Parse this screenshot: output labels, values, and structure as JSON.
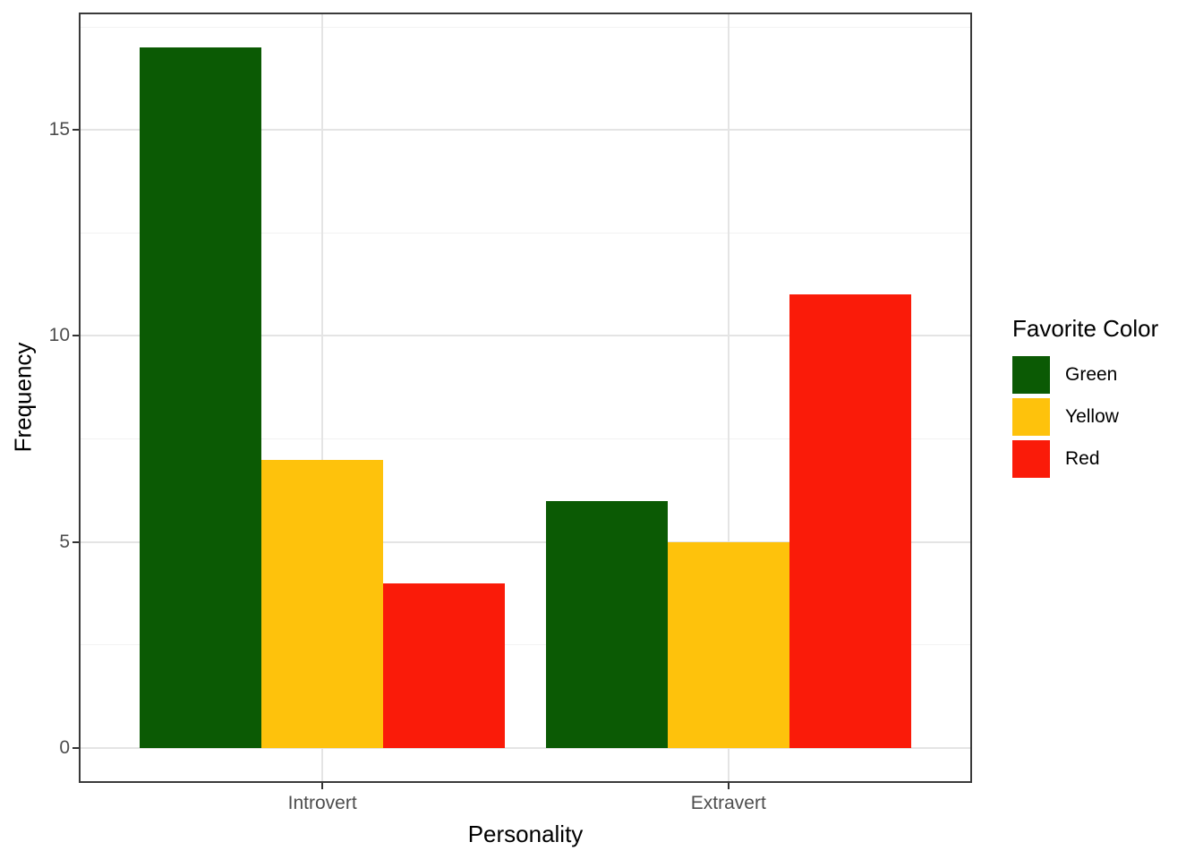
{
  "chart_data": {
    "type": "bar",
    "title": "",
    "categories": [
      "Introvert",
      "Extravert"
    ],
    "series": [
      {
        "name": "Green",
        "color": "#0B5A04",
        "values": [
          17,
          6
        ]
      },
      {
        "name": "Yellow",
        "color": "#FEC20C",
        "values": [
          7,
          5
        ]
      },
      {
        "name": "Red",
        "color": "#FA1B09",
        "values": [
          4,
          11
        ]
      }
    ],
    "xlabel": "Personality",
    "ylabel": "Frequency",
    "legend_title": "Favorite Color",
    "legend_position": "right",
    "y_ticks": [
      0,
      5,
      10,
      15
    ],
    "y_minor_ticks": [
      2.5,
      7.5,
      12.5,
      17.5
    ],
    "ylim": [
      -0.85,
      17.85
    ],
    "x_domain": [
      0.4,
      2.6
    ],
    "bar_width_fraction": 0.3,
    "grid": true
  },
  "styles": {
    "background": "#FFFFFF",
    "panel_border": "#3A3A3A",
    "grid_major": "#E4E4E4",
    "grid_minor": "#F2F2F2",
    "tick_mark": "#333333",
    "tick_label": "#4D4D4D",
    "axis_title": "#000000"
  }
}
